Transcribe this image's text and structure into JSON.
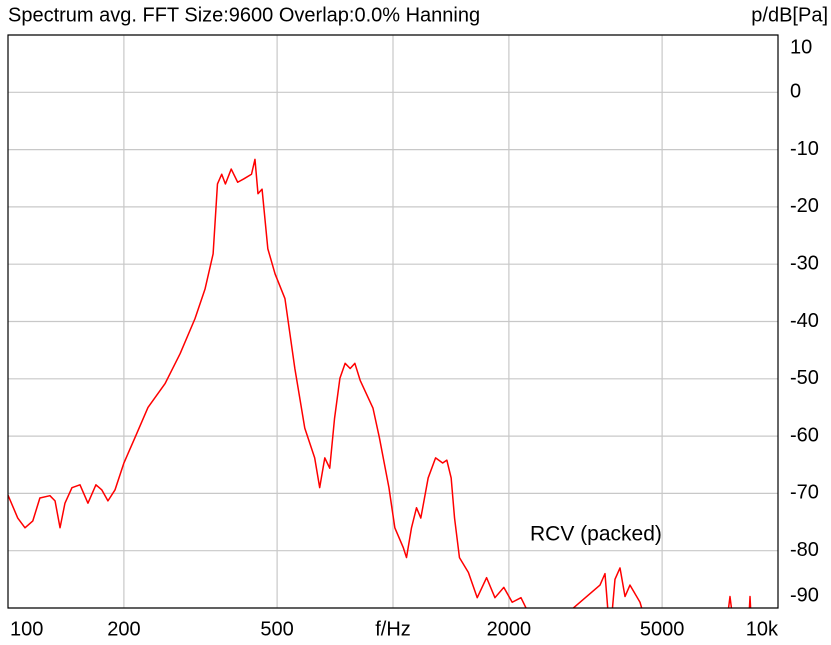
{
  "chart_data": {
    "type": "line",
    "title": "Spectrum avg.  FFT Size:9600  Overlap:0.0%  Hanning",
    "y_label": "p/dB[Pa]",
    "annotation": "RCV (packed)",
    "log_x": true,
    "grid": true,
    "xlim": [
      100,
      10000
    ],
    "xticks": [
      100,
      200,
      500,
      {
        "value": 1000,
        "label": "f/Hz"
      },
      2000,
      5000,
      {
        "value": 10000,
        "label": "10k"
      }
    ],
    "ylim": [
      -90,
      10
    ],
    "yticks": [
      10,
      0,
      -10,
      -20,
      -30,
      -40,
      -50,
      -60,
      -70,
      -80,
      -90
    ],
    "x": [
      100,
      106,
      110.7,
      116,
      121,
      128.5,
      132.5,
      136.5,
      140.6,
      146.6,
      153.8,
      161.3,
      169.2,
      175.3,
      181.8,
      189.6,
      200,
      213.6,
      231,
      256,
      280,
      306,
      325,
      341,
      350,
      359,
      367,
      380,
      395,
      410,
      429,
      438,
      446,
      457,
      473,
      494,
      524,
      556,
      590,
      626,
      645,
      665,
      685,
      705,
      728,
      751,
      774,
      796,
      822,
      887,
      922,
      976,
      1011,
      1064,
      1084,
      1117,
      1151,
      1181,
      1234,
      1290,
      1346,
      1380,
      1416,
      1445,
      1488,
      1570,
      1655,
      1750,
      1840,
      1940,
      2040,
      2150,
      2409,
      3449,
      3553,
      3661,
      3772,
      3887,
      4005,
      4126,
      4381,
      4651,
      7284,
      7504,
      7734,
      8356,
      8459,
      8560
    ],
    "series": [
      {
        "name": "RCV (packed)",
        "color": "#ff0000",
        "values": [
          -70.3,
          -74.3,
          -76,
          -74.8,
          -70.8,
          -70.4,
          -71.3,
          -76,
          -71.7,
          -69,
          -68.5,
          -71.7,
          -68.5,
          -69.4,
          -71.3,
          -69.4,
          -64.7,
          -60.3,
          -55,
          -50.8,
          -45.6,
          -39.5,
          -34.3,
          -28.2,
          -16,
          -14.3,
          -16,
          -13.4,
          -15.7,
          -15.1,
          -14.3,
          -11.7,
          -17.7,
          -16.9,
          -27.3,
          -31.7,
          -36,
          -48.2,
          -58.6,
          -63.8,
          -69,
          -63.8,
          -65.6,
          -56.9,
          -49.9,
          -47.3,
          -48.2,
          -47.3,
          -50.3,
          -55.1,
          -60.3,
          -69,
          -76,
          -79.5,
          -81.2,
          -76,
          -72.5,
          -74.3,
          -67.3,
          -63.8,
          -64.7,
          -64.2,
          -67.3,
          -74.3,
          -81.2,
          -83.8,
          -88.2,
          -84.7,
          -88.2,
          -86.4,
          -89,
          -88.2,
          -95,
          -86,
          -84,
          -95,
          -85,
          -83,
          -88,
          -86,
          -89,
          -95,
          -95,
          -88,
          -95,
          -95,
          -88,
          -95
        ]
      }
    ]
  }
}
